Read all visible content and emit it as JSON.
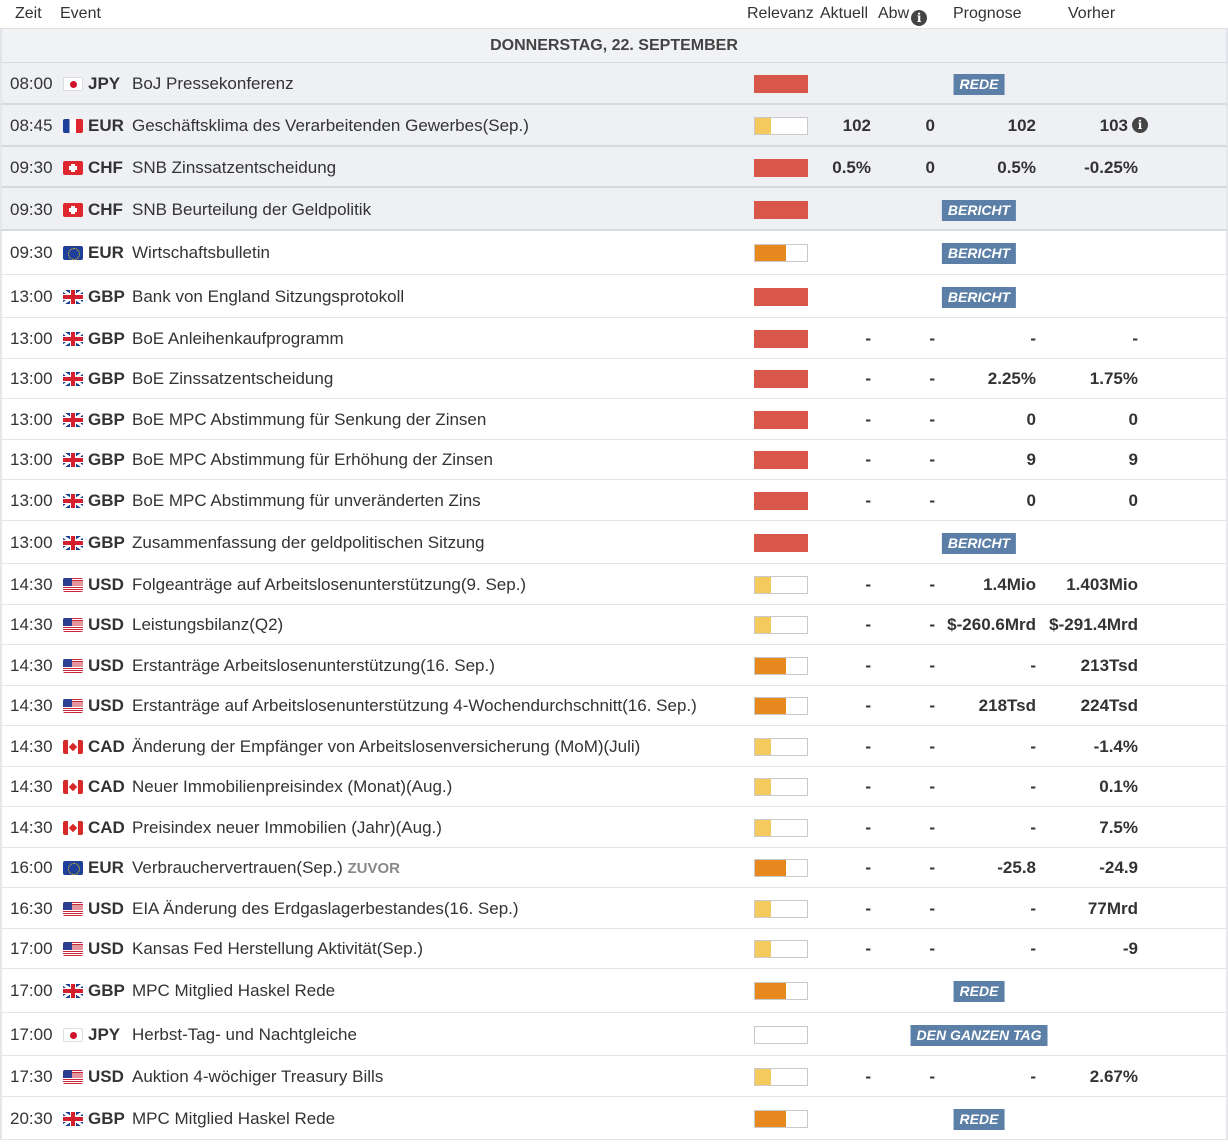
{
  "header": {
    "zeit": "Zeit",
    "event": "Event",
    "relevanz": "Relevanz",
    "aktuell": "Aktuell",
    "abw": "Abw",
    "prognose": "Prognose",
    "vorher": "Vorher"
  },
  "day": "DONNERSTAG, 22. SEPTEMBER",
  "colors": {
    "high": "#d9574a",
    "medium": "#e8891f",
    "low": "#f4c95d",
    "badge": "#5b7fa6"
  },
  "rows": [
    {
      "time": "08:00",
      "flag": "jp",
      "ccy": "JPY",
      "event": "BoJ Pressekonferenz",
      "level": "high",
      "badge": "REDE",
      "hl": true,
      "h": 42
    },
    {
      "time": "08:45",
      "flag": "fr",
      "ccy": "EUR",
      "event": "Geschäftsklima des Verarbeitenden Gewerbes(Sep.)",
      "level": "low",
      "actual": "102",
      "dev": "0",
      "forecast": "102",
      "previous": "103",
      "prev_info": true,
      "hl": true,
      "h": 42
    },
    {
      "time": "09:30",
      "flag": "ch",
      "ccy": "CHF",
      "event": "SNB Zinssatzentscheidung",
      "level": "high",
      "actual": "0.5%",
      "dev": "0",
      "forecast": "0.5%",
      "previous": "-0.25%",
      "hl": true,
      "h": 41
    },
    {
      "time": "09:30",
      "flag": "ch",
      "ccy": "CHF",
      "event": "SNB Beurteilung der Geldpolitik",
      "level": "high",
      "badge": "BERICHT",
      "hl": true,
      "h": 43
    },
    {
      "time": "09:30",
      "flag": "eu",
      "ccy": "EUR",
      "event": "Wirtschaftsbulletin",
      "level": "medium",
      "badge": "BERICHT",
      "h": 44
    },
    {
      "time": "13:00",
      "flag": "gb",
      "ccy": "GBP",
      "event": "Bank von England Sitzungsprotokoll",
      "level": "high",
      "badge": "BERICHT",
      "h": 43
    },
    {
      "time": "13:00",
      "flag": "gb",
      "ccy": "GBP",
      "event": "BoE Anleihenkaufprogramm",
      "level": "high",
      "actual": "-",
      "dev": "-",
      "forecast": "-",
      "previous": "-",
      "h": 41
    },
    {
      "time": "13:00",
      "flag": "gb",
      "ccy": "GBP",
      "event": "BoE Zinssatzentscheidung",
      "level": "high",
      "actual": "-",
      "dev": "-",
      "forecast": "2.25%",
      "previous": "1.75%",
      "h": 40
    },
    {
      "time": "13:00",
      "flag": "gb",
      "ccy": "GBP",
      "event": "BoE MPC Abstimmung für Senkung der Zinsen",
      "level": "high",
      "actual": "-",
      "dev": "-",
      "forecast": "0",
      "previous": "0",
      "h": 41
    },
    {
      "time": "13:00",
      "flag": "gb",
      "ccy": "GBP",
      "event": "BoE MPC Abstimmung für Erhöhung der Zinsen",
      "level": "high",
      "actual": "-",
      "dev": "-",
      "forecast": "9",
      "previous": "9",
      "h": 40
    },
    {
      "time": "13:00",
      "flag": "gb",
      "ccy": "GBP",
      "event": "BoE MPC Abstimmung für unveränderten Zins",
      "level": "high",
      "actual": "-",
      "dev": "-",
      "forecast": "0",
      "previous": "0",
      "h": 41
    },
    {
      "time": "13:00",
      "flag": "gb",
      "ccy": "GBP",
      "event": "Zusammenfassung der geldpolitischen Sitzung",
      "level": "high",
      "badge": "BERICHT",
      "h": 43
    },
    {
      "time": "14:30",
      "flag": "us",
      "ccy": "USD",
      "event": "Folgeanträge auf Arbeitslosenunterstützung(9. Sep.)",
      "level": "low",
      "actual": "-",
      "dev": "-",
      "forecast": "1.4Mio",
      "previous": "1.403Mio",
      "h": 41
    },
    {
      "time": "14:30",
      "flag": "us",
      "ccy": "USD",
      "event": "Leistungsbilanz(Q2)",
      "level": "low",
      "actual": "-",
      "dev": "-",
      "forecast": "$-260.6Mrd",
      "previous": "$-291.4Mrd",
      "h": 40
    },
    {
      "time": "14:30",
      "flag": "us",
      "ccy": "USD",
      "event": "Erstanträge Arbeitslosenunterstützung(16. Sep.)",
      "level": "medium",
      "actual": "-",
      "dev": "-",
      "forecast": "-",
      "previous": "213Tsd",
      "h": 41
    },
    {
      "time": "14:30",
      "flag": "us",
      "ccy": "USD",
      "event": "Erstanträge auf Arbeitslosenunterstützung 4-Wochendurchschnitt(16. Sep.)",
      "level": "medium",
      "actual": "-",
      "dev": "-",
      "forecast": "218Tsd",
      "previous": "224Tsd",
      "h": 40
    },
    {
      "time": "14:30",
      "flag": "ca",
      "ccy": "CAD",
      "event": "Änderung der Empfänger von Arbeitslosenversicherung (MoM)(Juli)",
      "level": "low",
      "actual": "-",
      "dev": "-",
      "forecast": "-",
      "previous": "-1.4%",
      "h": 41
    },
    {
      "time": "14:30",
      "flag": "ca",
      "ccy": "CAD",
      "event": "Neuer Immobilienpreisindex (Monat)(Aug.)",
      "level": "low",
      "actual": "-",
      "dev": "-",
      "forecast": "-",
      "previous": "0.1%",
      "h": 40
    },
    {
      "time": "14:30",
      "flag": "ca",
      "ccy": "CAD",
      "event": "Preisindex neuer Immobilien (Jahr)(Aug.)",
      "level": "low",
      "actual": "-",
      "dev": "-",
      "forecast": "-",
      "previous": "7.5%",
      "h": 41
    },
    {
      "time": "16:00",
      "flag": "eu",
      "ccy": "EUR",
      "event": "Verbrauchervertrauen(Sep.)",
      "zuvor": "ZUVOR",
      "level": "medium",
      "actual": "-",
      "dev": "-",
      "forecast": "-25.8",
      "previous": "-24.9",
      "h": 40
    },
    {
      "time": "16:30",
      "flag": "us",
      "ccy": "USD",
      "event": "EIA Änderung des Erdgaslagerbestandes(16. Sep.)",
      "level": "low",
      "actual": "-",
      "dev": "-",
      "forecast": "-",
      "previous": "77Mrd",
      "h": 41
    },
    {
      "time": "17:00",
      "flag": "us",
      "ccy": "USD",
      "event": "Kansas Fed Herstellung Aktivität(Sep.)",
      "level": "low",
      "actual": "-",
      "dev": "-",
      "forecast": "-",
      "previous": "-9",
      "h": 40
    },
    {
      "time": "17:00",
      "flag": "gb",
      "ccy": "GBP",
      "event": "MPC Mitglied Haskel Rede",
      "level": "medium",
      "badge": "REDE",
      "h": 44
    },
    {
      "time": "17:00",
      "flag": "jp",
      "ccy": "JPY",
      "event": "Herbst-Tag- und Nachtgleiche",
      "level": "none",
      "badge": "DEN GANZEN TAG",
      "h": 43
    },
    {
      "time": "17:30",
      "flag": "us",
      "ccy": "USD",
      "event": "Auktion 4-wöchiger Treasury Bills",
      "level": "low",
      "actual": "-",
      "dev": "-",
      "forecast": "-",
      "previous": "2.67%",
      "h": 41
    },
    {
      "time": "20:30",
      "flag": "gb",
      "ccy": "GBP",
      "event": "MPC Mitglied Haskel Rede",
      "level": "medium",
      "badge": "REDE",
      "h": 43
    }
  ]
}
